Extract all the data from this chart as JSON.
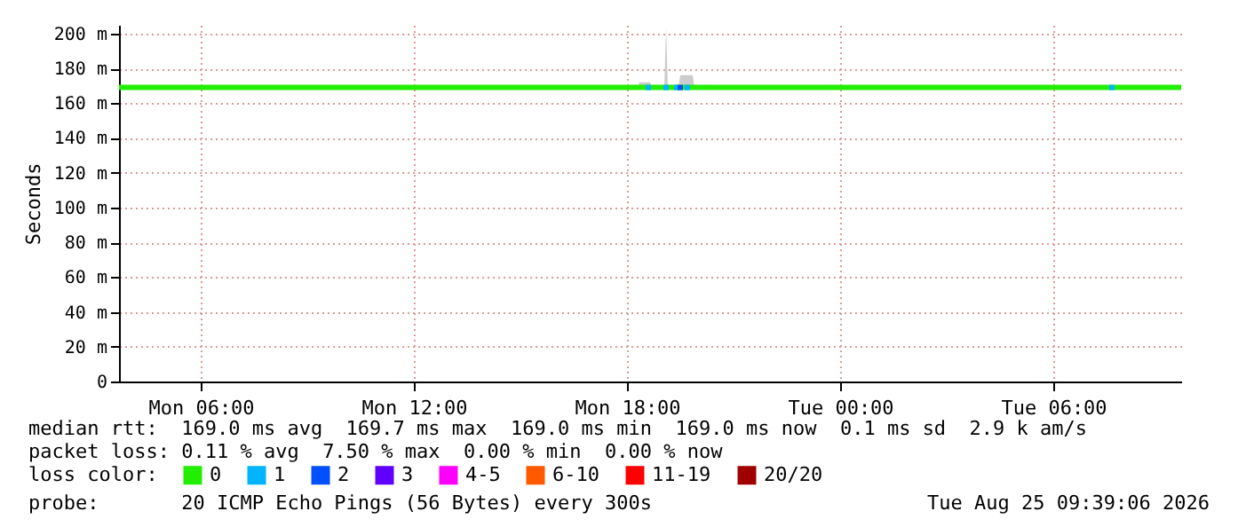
{
  "chart_data": {
    "type": "line",
    "ylabel": "Seconds",
    "legend_title": "loss color:",
    "legend": "bottom",
    "grid": true,
    "marker": "none",
    "xlim": [
      "2026-08-24T03:42",
      "2026-08-25T09:36"
    ],
    "ylim": [
      0,
      205
    ],
    "xticks": [
      {
        "value": "2026-08-24T06:00",
        "label": "Mon 06:00"
      },
      {
        "value": "2026-08-24T12:00",
        "label": "Mon 12:00"
      },
      {
        "value": "2026-08-24T18:00",
        "label": "Mon 18:00"
      },
      {
        "value": "2026-08-25T00:00",
        "label": "Tue 00:00"
      },
      {
        "value": "2026-08-25T06:00",
        "label": "Tue 06:00"
      }
    ],
    "yticks": [
      0,
      {
        "value": 20,
        "label": "20 m"
      },
      {
        "value": 40,
        "label": "40 m"
      },
      {
        "value": 60,
        "label": "60 m"
      },
      {
        "value": 80,
        "label": "80 m"
      },
      {
        "value": 100,
        "label": "100 m"
      },
      {
        "value": 120,
        "label": "120 m"
      },
      {
        "value": 140,
        "label": "140 m"
      },
      {
        "value": 160,
        "label": "160 m"
      },
      {
        "value": 180,
        "label": "180 m"
      },
      {
        "value": 200,
        "label": "200 m"
      }
    ],
    "series": [
      {
        "name": "0",
        "color": "#22ee00",
        "x": [
          "2026-08-24T03:42",
          "2026-08-24T18:18",
          "2026-08-24T18:21",
          "2026-08-24T18:39",
          "2026-08-24T18:42",
          "2026-08-24T19:03",
          "2026-08-24T19:06",
          "2026-08-24T19:09",
          "2026-08-24T19:27",
          "2026-08-24T19:30",
          "2026-08-24T19:51",
          "2026-08-24T19:54",
          "2026-08-25T09:36"
        ],
        "values": [
          169,
          169,
          169,
          169,
          169,
          169,
          169,
          169,
          169,
          169,
          169,
          169,
          169
        ],
        "lower": [
          169,
          169,
          169,
          169,
          169,
          169,
          169,
          169,
          169,
          169,
          169,
          169,
          169
        ],
        "upper": [
          169,
          169,
          172,
          172,
          169,
          169,
          204,
          169,
          169,
          176,
          176,
          169,
          169
        ]
      },
      {
        "name": "1",
        "color": "#00b4ff",
        "type": "scatter",
        "marker": "square",
        "x": [
          "2026-08-24T18:36",
          "2026-08-24T19:06",
          "2026-08-24T19:24",
          "2026-08-24T19:42",
          "2026-08-25T07:39"
        ],
        "values": [
          169,
          169,
          169,
          169,
          169
        ]
      },
      {
        "name": "2",
        "color": "#0050ff",
        "type": "scatter",
        "marker": "square",
        "x": [
          "2026-08-24T19:30"
        ],
        "values": [
          169
        ]
      },
      {
        "name": "3",
        "color": "#6000ff",
        "type": "scatter",
        "marker": "square"
      },
      {
        "name": "4-5",
        "color": "#ff00ff",
        "type": "scatter",
        "marker": "square"
      },
      {
        "name": "6-10",
        "color": "#ff5a00",
        "type": "scatter",
        "marker": "square"
      },
      {
        "name": "11-19",
        "color": "#ff0000",
        "type": "scatter",
        "marker": "square"
      },
      {
        "name": "20/20",
        "color": "#a00000",
        "type": "scatter",
        "marker": "square"
      }
    ],
    "annotations": [
      "median rtt:  169.0 ms avg  169.7 ms max  169.0 ms min  169.0 ms now  0.1 ms sd  2.9 k am/s",
      "packet loss: 0.11 % avg  7.50 % max  0.00 % min  0.00 % now",
      "probe:       20 ICMP Echo Pings (56 Bytes) every 300s",
      "Tue Aug 25 09:39:06 2026"
    ]
  }
}
